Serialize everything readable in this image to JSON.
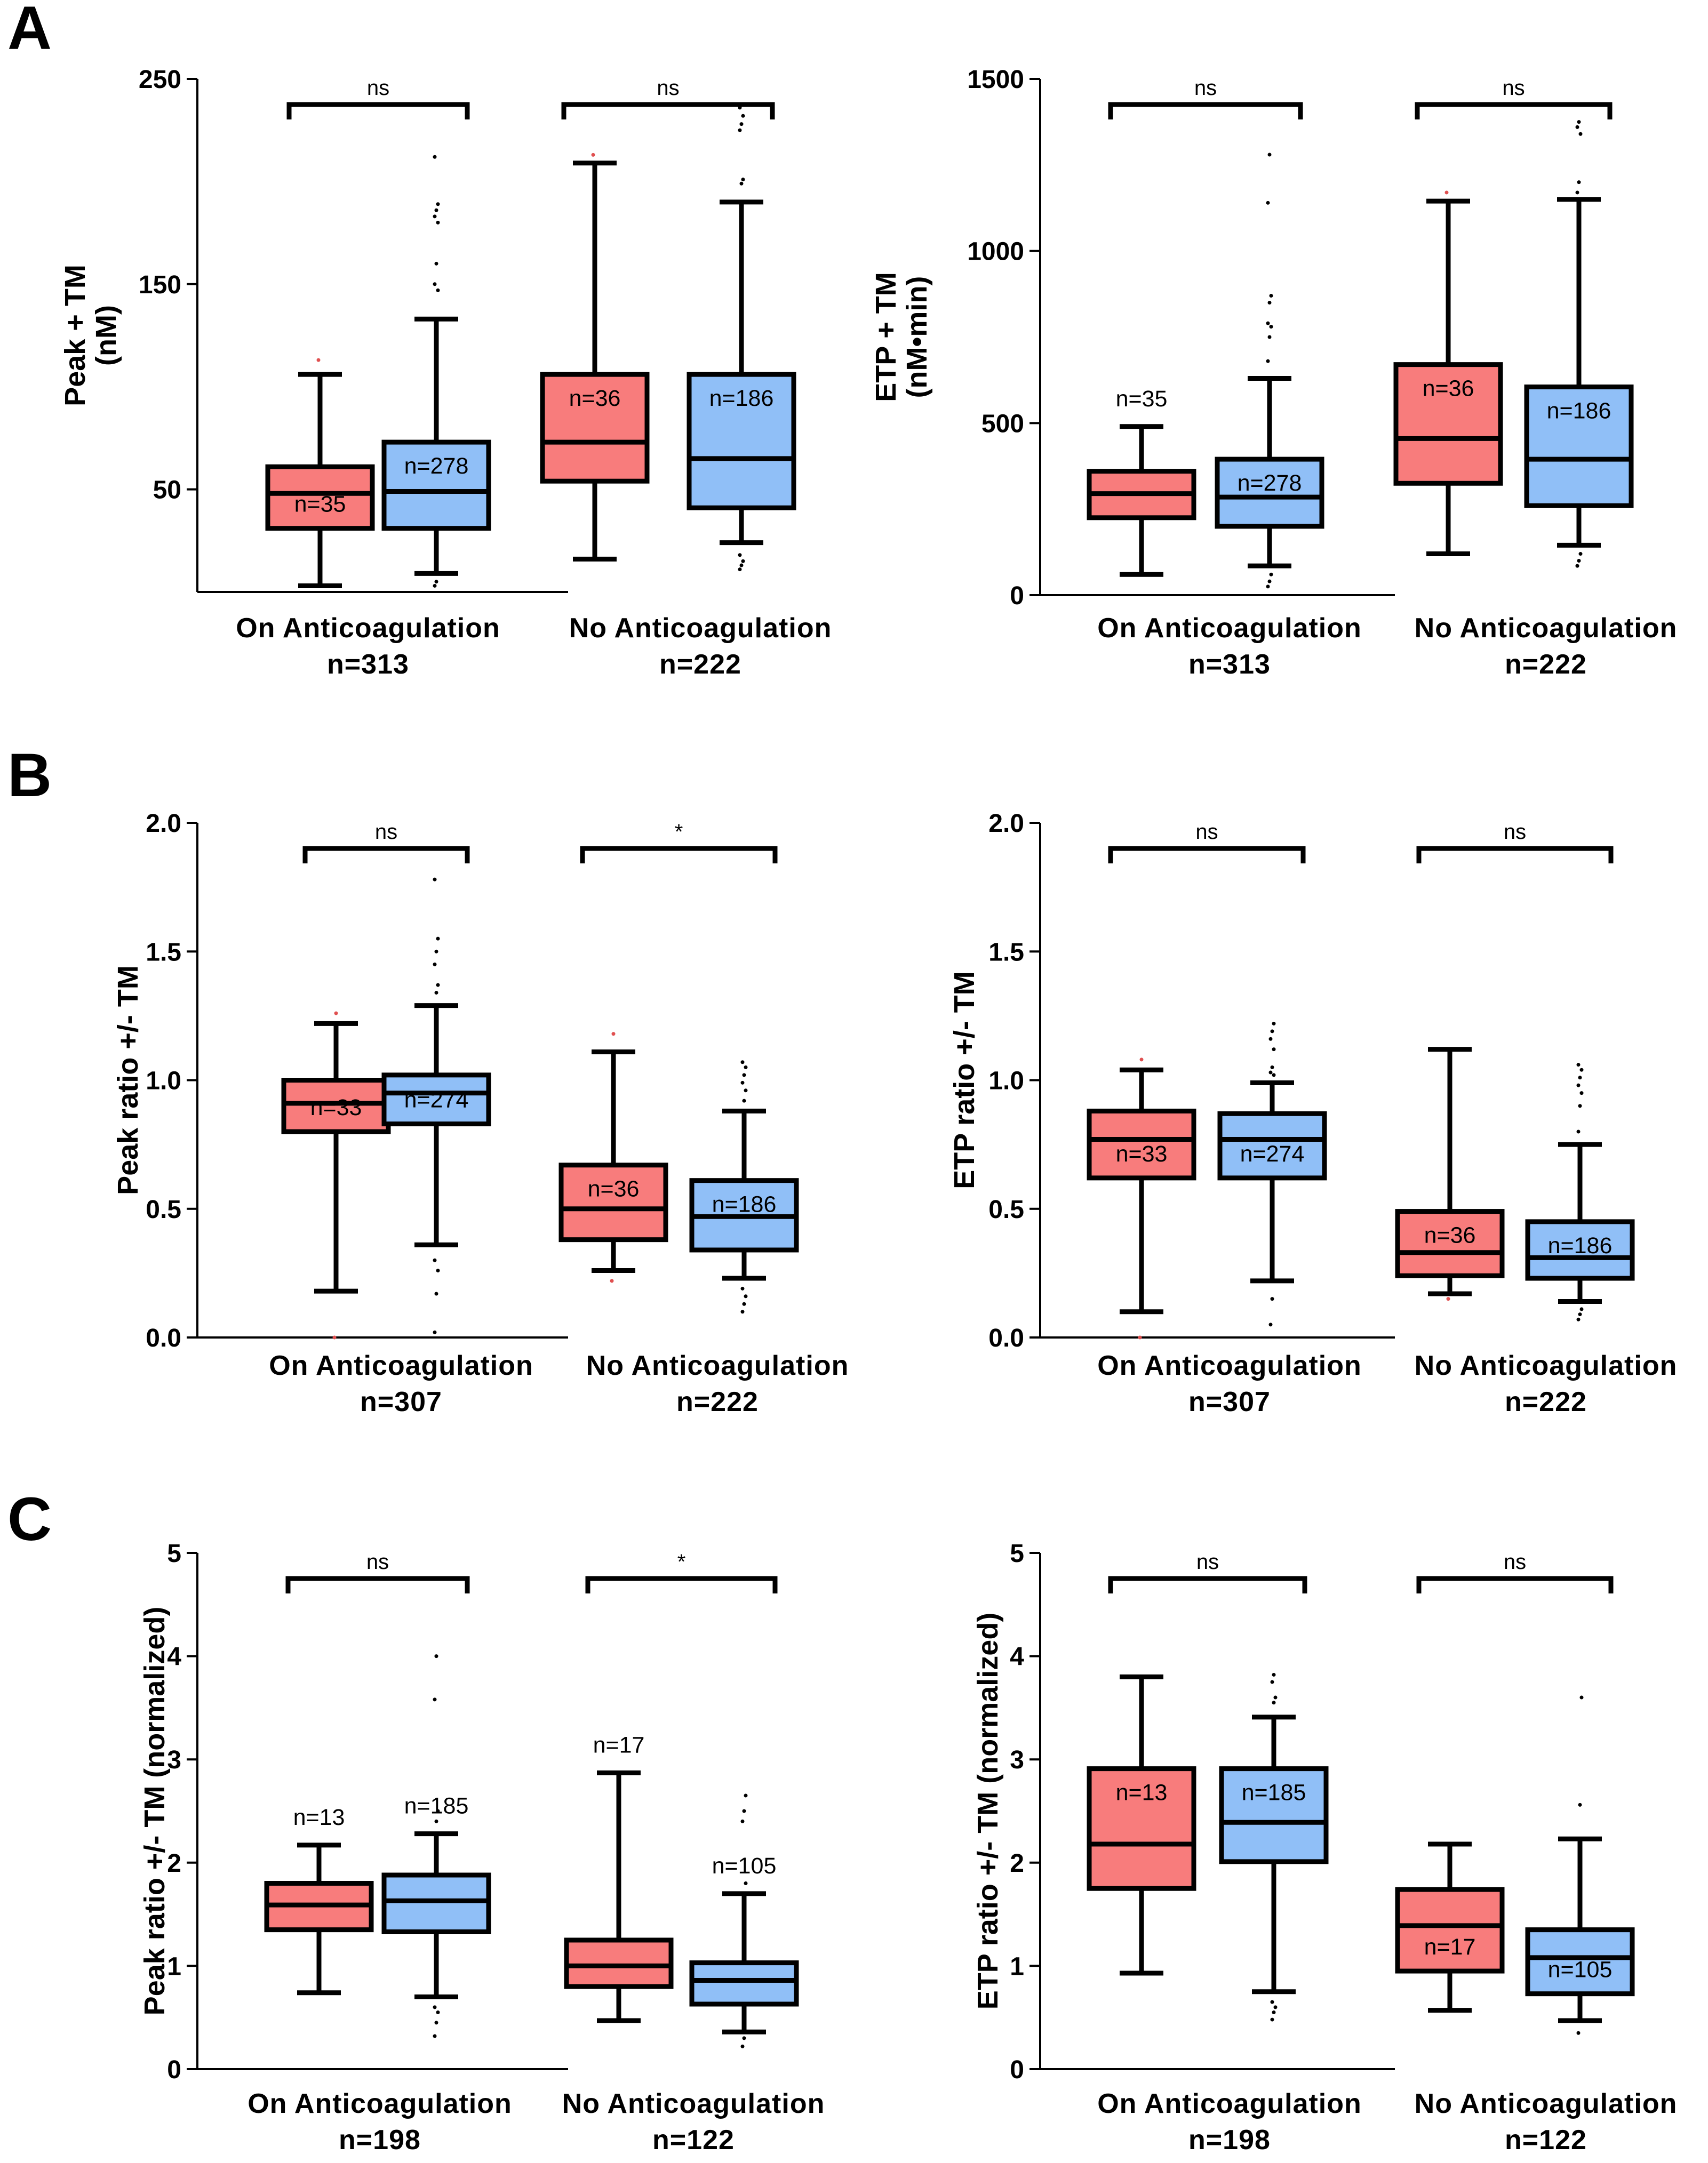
{
  "colors": {
    "red": "#f87c7c",
    "blue": "#90bff7",
    "line": "#000000"
  },
  "panel_letters": [
    "A",
    "B",
    "C"
  ],
  "chart_data": [
    {
      "type": "box",
      "panel": "A",
      "ylabel_lines": [
        "Peak + TM",
        "(nM)"
      ],
      "ylim": [
        0,
        250
      ],
      "ticks": [
        50,
        150,
        250
      ],
      "categories": [
        {
          "label": "On Anticoagulation",
          "n_label": "n=313",
          "sig": "ns",
          "boxes": [
            {
              "color": "red",
              "n": "n=35",
              "min": 3,
              "q1": 31,
              "median": 48,
              "q3": 61,
              "max": 106,
              "outliers": [
                113
              ]
            },
            {
              "color": "blue",
              "n": "n=278",
              "min": 9,
              "q1": 31,
              "median": 49,
              "q3": 73,
              "max": 133,
              "outliers": [
                3,
                5,
                147,
                150,
                160,
                180,
                183,
                186,
                189,
                212
              ]
            }
          ]
        },
        {
          "label": "No Anticoagulation",
          "n_label": "n=222",
          "sig": "ns",
          "boxes": [
            {
              "color": "red",
              "n": "n=36",
              "min": 16,
              "q1": 54,
              "median": 73,
              "q3": 106,
              "max": 209,
              "outliers": [
                213
              ]
            },
            {
              "color": "blue",
              "n": "n=186",
              "min": 24,
              "q1": 41,
              "median": 65,
              "q3": 106,
              "max": 190,
              "outliers": [
                11,
                13,
                15,
                18,
                199,
                201,
                225,
                228,
                232,
                236
              ]
            }
          ]
        }
      ]
    },
    {
      "type": "box",
      "panel": "A",
      "ylabel_lines": [
        "ETP + TM",
        "(nM•min)"
      ],
      "ylim": [
        0,
        1500
      ],
      "ticks": [
        0,
        500,
        1000,
        1500
      ],
      "categories": [
        {
          "label": "On Anticoagulation",
          "n_label": "n=313",
          "sig": "ns",
          "boxes": [
            {
              "color": "red",
              "n": "n=35",
              "n_position": "above",
              "min": 60,
              "q1": 225,
              "median": 295,
              "q3": 360,
              "max": 490,
              "outliers": []
            },
            {
              "color": "blue",
              "n": "n=278",
              "min": 85,
              "q1": 200,
              "median": 285,
              "q3": 395,
              "max": 630,
              "outliers": [
                25,
                40,
                60,
                680,
                750,
                780,
                790,
                850,
                870,
                1140,
                1280
              ]
            }
          ]
        },
        {
          "label": "No Anticoagulation",
          "n_label": "n=222",
          "sig": "ns",
          "boxes": [
            {
              "color": "red",
              "n": "n=36",
              "min": 120,
              "q1": 325,
              "median": 455,
              "q3": 670,
              "max": 1145,
              "outliers": [
                1170
              ]
            },
            {
              "color": "blue",
              "n": "n=186",
              "min": 145,
              "q1": 260,
              "median": 395,
              "q3": 605,
              "max": 1150,
              "outliers": [
                85,
                100,
                120,
                1170,
                1200,
                1340,
                1360,
                1375
              ]
            }
          ]
        }
      ]
    },
    {
      "type": "box",
      "panel": "B",
      "ylabel_lines": [
        "Peak ratio +/- TM"
      ],
      "ylim": [
        0,
        2
      ],
      "ticks": [
        0.0,
        0.5,
        1.0,
        1.5,
        2.0
      ],
      "tick_labels": [
        "0.0",
        "0.5",
        "1.0",
        "1.5",
        "2.0"
      ],
      "categories": [
        {
          "label": "On Anticoagulation",
          "n_label": "n=307",
          "sig": "ns",
          "boxes": [
            {
              "color": "red",
              "n": "n=33",
              "min": 0.18,
              "q1": 0.8,
              "median": 0.91,
              "q3": 1.0,
              "max": 1.22,
              "outliers": [
                0.0,
                1.26
              ]
            },
            {
              "color": "blue",
              "n": "n=274",
              "min": 0.36,
              "q1": 0.83,
              "median": 0.95,
              "q3": 1.02,
              "max": 1.29,
              "outliers": [
                0.02,
                0.17,
                0.26,
                0.3,
                1.34,
                1.37,
                1.45,
                1.5,
                1.55,
                1.78
              ]
            }
          ]
        },
        {
          "label": "No Anticoagulation",
          "n_label": "n=222",
          "sig": "*",
          "boxes": [
            {
              "color": "red",
              "n": "n=36",
              "min": 0.26,
              "q1": 0.38,
              "median": 0.5,
              "q3": 0.67,
              "max": 1.11,
              "outliers": [
                0.22,
                1.18
              ]
            },
            {
              "color": "blue",
              "n": "n=186",
              "min": 0.23,
              "q1": 0.34,
              "median": 0.47,
              "q3": 0.61,
              "max": 0.88,
              "outliers": [
                0.1,
                0.13,
                0.16,
                0.19,
                0.92,
                0.96,
                0.99,
                1.02,
                1.05,
                1.07
              ]
            }
          ]
        }
      ]
    },
    {
      "type": "box",
      "panel": "B",
      "ylabel_lines": [
        "ETP ratio +/- TM"
      ],
      "ylim": [
        0,
        2
      ],
      "ticks": [
        0.0,
        0.5,
        1.0,
        1.5,
        2.0
      ],
      "tick_labels": [
        "0.0",
        "0.5",
        "1.0",
        "1.5",
        "2.0"
      ],
      "categories": [
        {
          "label": "On Anticoagulation",
          "n_label": "n=307",
          "sig": "ns",
          "boxes": [
            {
              "color": "red",
              "n": "n=33",
              "min": 0.1,
              "q1": 0.62,
              "median": 0.77,
              "q3": 0.88,
              "max": 1.04,
              "outliers": [
                0.0,
                1.08
              ]
            },
            {
              "color": "blue",
              "n": "n=274",
              "min": 0.22,
              "q1": 0.62,
              "median": 0.77,
              "q3": 0.87,
              "max": 0.99,
              "outliers": [
                0.05,
                0.15,
                1.02,
                1.03,
                1.05,
                1.12,
                1.16,
                1.19,
                1.22
              ]
            }
          ]
        },
        {
          "label": "No Anticoagulation",
          "n_label": "n=222",
          "sig": "ns",
          "boxes": [
            {
              "color": "red",
              "n": "n=36",
              "min": 0.17,
              "q1": 0.24,
              "median": 0.33,
              "q3": 0.49,
              "max": 1.12,
              "outliers": [
                0.15
              ]
            },
            {
              "color": "blue",
              "n": "n=186",
              "min": 0.14,
              "q1": 0.23,
              "median": 0.31,
              "q3": 0.45,
              "max": 0.75,
              "outliers": [
                0.07,
                0.09,
                0.11,
                0.8,
                0.9,
                0.95,
                0.98,
                1.01,
                1.04,
                1.06
              ]
            }
          ]
        }
      ]
    },
    {
      "type": "box",
      "panel": "C",
      "ylabel_lines": [
        "Peak ratio +/- TM (normalized)"
      ],
      "ylim": [
        0,
        5
      ],
      "ticks": [
        0,
        1,
        2,
        3,
        4,
        5
      ],
      "categories": [
        {
          "label": "On Anticoagulation",
          "n_label": "n=198",
          "sig": "ns",
          "boxes": [
            {
              "color": "red",
              "n": "n=13",
              "n_position": "above",
              "min": 0.74,
              "q1": 1.35,
              "median": 1.59,
              "q3": 1.8,
              "max": 2.17,
              "outliers": []
            },
            {
              "color": "blue",
              "n": "n=185",
              "n_position": "above",
              "min": 0.7,
              "q1": 1.33,
              "median": 1.63,
              "q3": 1.88,
              "max": 2.28,
              "outliers": [
                0.32,
                0.45,
                0.55,
                0.6,
                2.4,
                2.5,
                3.58,
                4.0
              ]
            }
          ]
        },
        {
          "label": "No Anticoagulation",
          "n_label": "n=122",
          "sig": "*",
          "boxes": [
            {
              "color": "red",
              "n": "n=17",
              "n_position": "above",
              "min": 0.47,
              "q1": 0.8,
              "median": 1.0,
              "q3": 1.25,
              "max": 2.87,
              "outliers": []
            },
            {
              "color": "blue",
              "n": "n=105",
              "n_position": "above",
              "min": 0.36,
              "q1": 0.63,
              "median": 0.86,
              "q3": 1.03,
              "max": 1.7,
              "outliers": [
                0.22,
                0.3,
                1.8,
                2.4,
                2.5,
                2.65
              ]
            }
          ]
        }
      ]
    },
    {
      "type": "box",
      "panel": "C",
      "ylabel_lines": [
        "ETP ratio +/- TM (normalized)"
      ],
      "ylim": [
        0,
        5
      ],
      "ticks": [
        0,
        1,
        2,
        3,
        4,
        5
      ],
      "categories": [
        {
          "label": "On Anticoagulation",
          "n_label": "n=198",
          "sig": "ns",
          "boxes": [
            {
              "color": "red",
              "n": "n=13",
              "min": 0.93,
              "q1": 1.75,
              "median": 2.18,
              "q3": 2.91,
              "max": 3.8,
              "outliers": []
            },
            {
              "color": "blue",
              "n": "n=185",
              "min": 0.75,
              "q1": 2.01,
              "median": 2.39,
              "q3": 2.91,
              "max": 3.41,
              "outliers": [
                0.48,
                0.55,
                0.6,
                0.65,
                3.55,
                3.6,
                3.75,
                3.82
              ]
            }
          ]
        },
        {
          "label": "No Anticoagulation",
          "n_label": "n=122",
          "sig": "ns",
          "boxes": [
            {
              "color": "red",
              "n": "n=17",
              "min": 0.57,
              "q1": 0.95,
              "median": 1.39,
              "q3": 1.74,
              "max": 2.18,
              "outliers": []
            },
            {
              "color": "blue",
              "n": "n=105",
              "min": 0.47,
              "q1": 0.73,
              "median": 1.08,
              "q3": 1.35,
              "max": 2.23,
              "outliers": [
                0.35,
                2.56,
                3.6
              ]
            }
          ]
        }
      ]
    }
  ]
}
